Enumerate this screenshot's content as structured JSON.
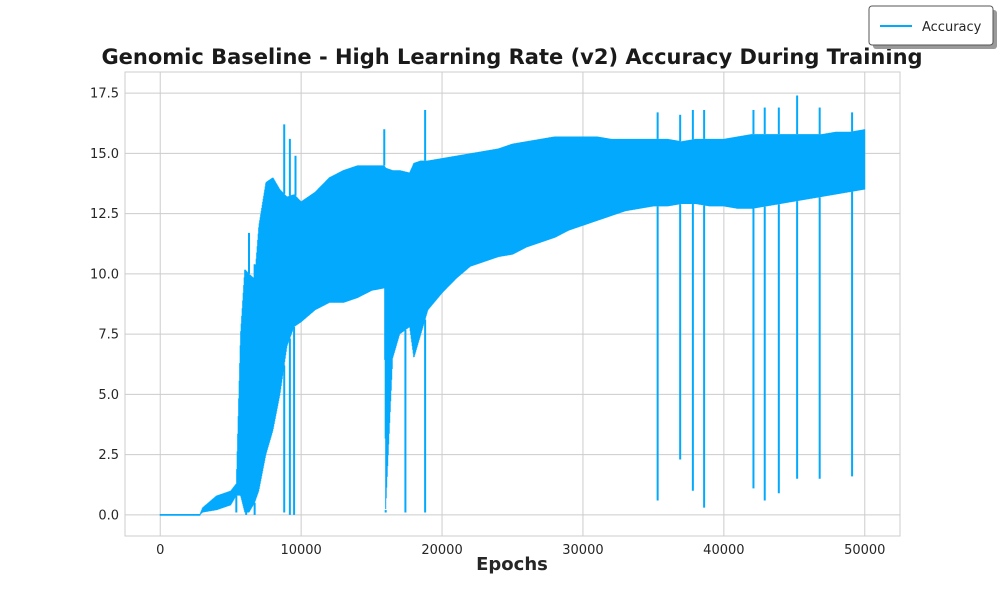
{
  "chart_data": {
    "type": "line",
    "title": "Genomic Baseline - High Learning Rate (v2) Accuracy During Training",
    "xlabel": "Epochs",
    "ylabel": "",
    "xlim": [
      -2500,
      52500
    ],
    "ylim": [
      -0.875,
      18.375
    ],
    "xticks": [
      0,
      10000,
      20000,
      30000,
      40000,
      50000
    ],
    "xtick_labels": [
      "0",
      "10000",
      "20000",
      "30000",
      "40000",
      "50000"
    ],
    "yticks": [
      0.0,
      2.5,
      5.0,
      7.5,
      10.0,
      12.5,
      15.0,
      17.5
    ],
    "ytick_labels": [
      "0.0",
      "2.5",
      "5.0",
      "7.5",
      "10.0",
      "12.5",
      "15.0",
      "17.5"
    ],
    "grid": true,
    "legend_position": "top-right",
    "series": [
      {
        "name": "Accuracy",
        "color": "#03a9fc",
        "x_range": [
          0,
          50000
        ],
        "envelope": {
          "x": [
            0,
            2800,
            3000,
            4000,
            5000,
            5400,
            5700,
            6000,
            6300,
            6700,
            7000,
            7500,
            8000,
            8500,
            9000,
            9500,
            10000,
            11000,
            12000,
            13000,
            14000,
            15000,
            15900,
            16000,
            16500,
            17000,
            17700,
            18000,
            18500,
            19000,
            20000,
            21000,
            22000,
            23000,
            24000,
            25000,
            26000,
            27000,
            28000,
            29000,
            30000,
            31000,
            32000,
            33000,
            34000,
            35000,
            36000,
            37000,
            38000,
            39000,
            40000,
            41000,
            42000,
            43000,
            44000,
            45000,
            46000,
            47000,
            48000,
            49000,
            50000
          ],
          "lower": [
            0,
            0,
            0.1,
            0.2,
            0.4,
            0.8,
            0.8,
            0.1,
            0.1,
            0.5,
            1.0,
            2.5,
            3.5,
            5.0,
            7.0,
            7.8,
            8.0,
            8.5,
            8.8,
            8.8,
            9.0,
            9.3,
            9.4,
            0.2,
            6.5,
            7.5,
            7.8,
            6.5,
            7.5,
            8.5,
            9.2,
            9.8,
            10.3,
            10.5,
            10.7,
            10.8,
            11.1,
            11.3,
            11.5,
            11.8,
            12.0,
            12.2,
            12.4,
            12.6,
            12.7,
            12.8,
            12.8,
            12.9,
            12.9,
            12.8,
            12.8,
            12.7,
            12.7,
            12.8,
            12.9,
            13.0,
            13.1,
            13.2,
            13.3,
            13.4,
            13.5
          ],
          "upper": [
            0,
            0,
            0.3,
            0.8,
            1.0,
            1.3,
            7.5,
            10.2,
            10.0,
            9.8,
            12.0,
            13.8,
            14.0,
            13.5,
            13.2,
            13.3,
            13.0,
            13.4,
            14.0,
            14.3,
            14.5,
            14.5,
            14.5,
            14.4,
            14.3,
            14.3,
            14.2,
            14.6,
            14.7,
            14.7,
            14.8,
            14.9,
            15.0,
            15.1,
            15.2,
            15.4,
            15.5,
            15.6,
            15.7,
            15.7,
            15.7,
            15.7,
            15.6,
            15.6,
            15.6,
            15.6,
            15.6,
            15.5,
            15.6,
            15.6,
            15.6,
            15.7,
            15.8,
            15.8,
            15.8,
            15.8,
            15.8,
            15.8,
            15.9,
            15.9,
            16.0
          ]
        },
        "spikes_high": [
          {
            "x": 6300,
            "y": 11.7
          },
          {
            "x": 6700,
            "y": 10.4
          },
          {
            "x": 8800,
            "y": 16.2
          },
          {
            "x": 9200,
            "y": 15.6
          },
          {
            "x": 9600,
            "y": 14.9
          },
          {
            "x": 15900,
            "y": 16.0
          },
          {
            "x": 17700,
            "y": 10.3
          },
          {
            "x": 18800,
            "y": 16.8
          },
          {
            "x": 35300,
            "y": 16.7
          },
          {
            "x": 36900,
            "y": 16.6
          },
          {
            "x": 37800,
            "y": 16.8
          },
          {
            "x": 38600,
            "y": 16.8
          },
          {
            "x": 42100,
            "y": 16.8
          },
          {
            "x": 42900,
            "y": 16.9
          },
          {
            "x": 43900,
            "y": 16.9
          },
          {
            "x": 45200,
            "y": 17.4
          },
          {
            "x": 46800,
            "y": 16.9
          },
          {
            "x": 49100,
            "y": 16.7
          }
        ],
        "spikes_low": [
          {
            "x": 5400,
            "y": 0.1
          },
          {
            "x": 6100,
            "y": 0.0
          },
          {
            "x": 6700,
            "y": 0.0
          },
          {
            "x": 8800,
            "y": 0.1
          },
          {
            "x": 9200,
            "y": 0.0
          },
          {
            "x": 9500,
            "y": 0.0
          },
          {
            "x": 16000,
            "y": 0.1
          },
          {
            "x": 17400,
            "y": 0.1
          },
          {
            "x": 18800,
            "y": 0.1
          },
          {
            "x": 35300,
            "y": 0.6
          },
          {
            "x": 36900,
            "y": 2.3
          },
          {
            "x": 37800,
            "y": 1.0
          },
          {
            "x": 38600,
            "y": 0.3
          },
          {
            "x": 42100,
            "y": 1.1
          },
          {
            "x": 42900,
            "y": 0.6
          },
          {
            "x": 43900,
            "y": 0.9
          },
          {
            "x": 45200,
            "y": 1.5
          },
          {
            "x": 46800,
            "y": 1.5
          },
          {
            "x": 49100,
            "y": 1.6
          }
        ]
      }
    ]
  }
}
